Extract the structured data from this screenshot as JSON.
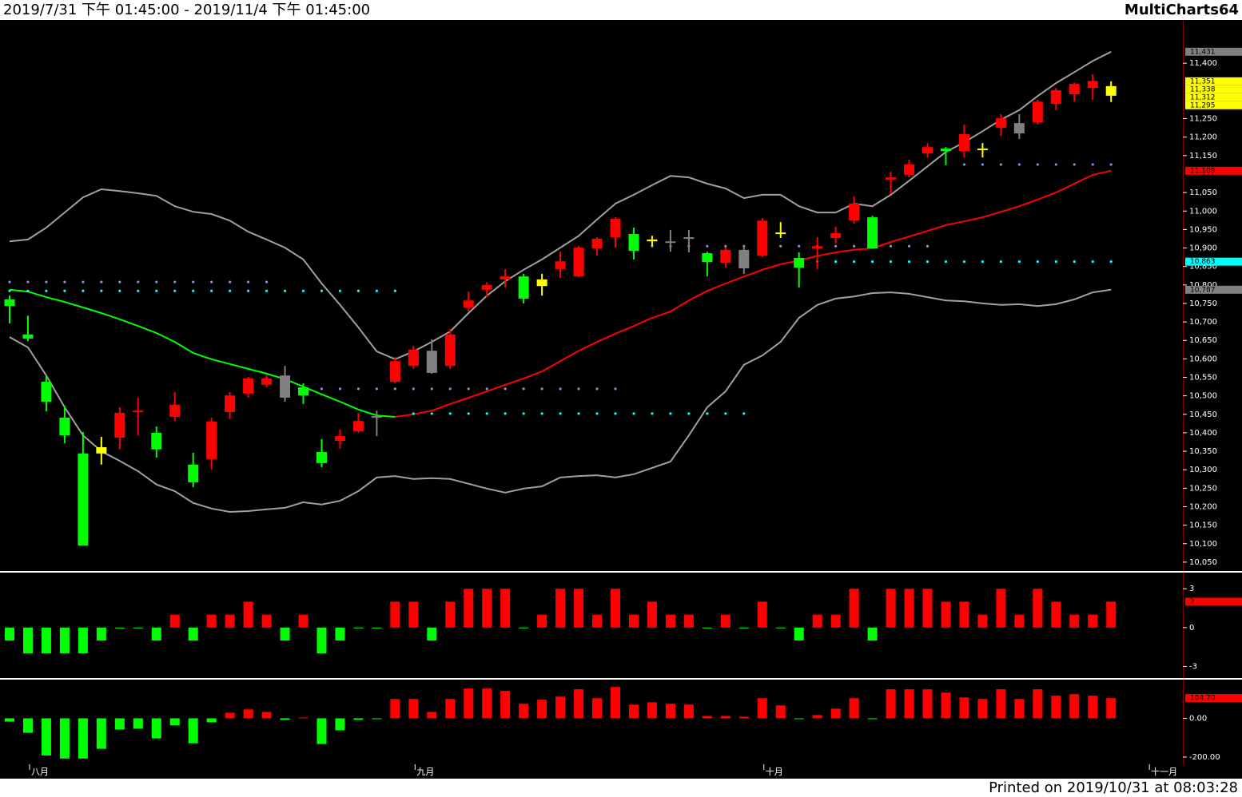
{
  "header": {
    "range": "2019/7/31 下午 01:45:00 - 2019/11/4 下午 01:45:00",
    "brand": "MultiCharts64"
  },
  "footer": {
    "printed": "Printed on 2019/10/31 at 08:03:28"
  },
  "chart_data": [
    {
      "type": "candlestick",
      "categories": [
        null,
        "八月",
        null,
        null,
        null,
        null,
        null,
        null,
        null,
        null,
        null,
        null,
        null,
        null,
        null,
        null,
        null,
        null,
        null,
        null,
        null,
        null,
        "九月",
        null,
        null,
        null,
        null,
        null,
        null,
        null,
        null,
        null,
        null,
        null,
        null,
        null,
        null,
        null,
        null,
        null,
        null,
        "十月",
        null,
        null,
        null,
        null,
        null,
        null,
        null,
        null,
        null,
        null,
        null,
        null,
        null,
        null,
        null,
        null,
        null,
        null,
        null,
        null,
        "十一月"
      ],
      "open": [
        10761,
        10666,
        10538,
        10441,
        10344,
        10361,
        10387,
        10456,
        10400,
        10443,
        10314,
        10329,
        10456,
        10506,
        10530,
        10555,
        10523,
        10348,
        10378,
        10404,
        10445,
        10538,
        10581,
        10622,
        10581,
        10739,
        10787,
        10815,
        10823,
        10797,
        10843,
        10823,
        10899,
        10929,
        10938,
        10918,
        10918,
        10929,
        10886,
        10860,
        10895,
        10879,
        10938,
        10873,
        10899,
        10927,
        10974,
        10983,
        11085,
        11098,
        11156,
        11169,
        11162,
        11165,
        11225,
        11238,
        11240,
        11290,
        11316,
        11333,
        11338,
        null,
        null
      ],
      "high": [
        10771,
        10717,
        10555,
        10473,
        10402,
        10389,
        10469,
        10495,
        10417,
        10510,
        10346,
        10441,
        10510,
        10551,
        10555,
        10581,
        10534,
        10383,
        10409,
        10454,
        10460,
        10605,
        10635,
        10653,
        10681,
        10782,
        10808,
        10843,
        10830,
        10830,
        10890,
        10905,
        10929,
        10983,
        10955,
        10933,
        10949,
        10949,
        10890,
        10901,
        10905,
        10981,
        10970,
        10888,
        10929,
        10957,
        11039,
        10987,
        11106,
        11139,
        11184,
        11173,
        11234,
        11184,
        11262,
        11262,
        11301,
        11333,
        11348,
        11370,
        11351,
        null,
        null
      ],
      "low": [
        10696,
        10648,
        10458,
        10372,
        10095,
        10314,
        10355,
        10393,
        10333,
        10432,
        10253,
        10301,
        10437,
        10495,
        10523,
        10484,
        10478,
        10307,
        10357,
        10400,
        10391,
        10534,
        10573,
        10560,
        10573,
        10728,
        10767,
        10793,
        10750,
        10771,
        10819,
        10821,
        10879,
        10901,
        10869,
        10905,
        10890,
        10888,
        10823,
        10847,
        10830,
        10875,
        10927,
        10793,
        10843,
        10912,
        10966,
        10899,
        11046,
        11091,
        11145,
        11124,
        11145,
        11145,
        11203,
        11195,
        11234,
        11273,
        11296,
        11301,
        11295,
        null,
        null
      ],
      "close": [
        10743,
        10655,
        10484,
        10393,
        10095,
        10344,
        10454,
        10460,
        10355,
        10476,
        10266,
        10430,
        10501,
        10547,
        10547,
        10495,
        10501,
        10318,
        10391,
        10432,
        10441,
        10594,
        10625,
        10562,
        10666,
        10758,
        10800,
        10823,
        10763,
        10815,
        10864,
        10901,
        10925,
        10979,
        10892,
        10923,
        10914,
        10925,
        10862,
        10895,
        10845,
        10974,
        10942,
        10847,
        10905,
        10940,
        11020,
        10899,
        11091,
        11126,
        11173,
        11162,
        11208,
        11169,
        11251,
        11210,
        11296,
        11327,
        11344,
        11352,
        11312,
        null,
        null
      ],
      "colors": [
        "#00ff00",
        "#00ff00",
        "#00ff00",
        "#00ff00",
        "#00ff00",
        "#ffff00",
        "#ff0000",
        "#ff0000",
        "#00ff00",
        "#ff0000",
        "#00ff00",
        "#ff0000",
        "#ff0000",
        "#ff0000",
        "#ff0000",
        "#808080",
        "#00ff00",
        "#00ff00",
        "#ff0000",
        "#ff0000",
        "#808080",
        "#ff0000",
        "#ff0000",
        "#808080",
        "#ff0000",
        "#ff0000",
        "#ff0000",
        "#ff0000",
        "#00ff00",
        "#ffff00",
        "#ff0000",
        "#ff0000",
        "#ff0000",
        "#ff0000",
        "#00ff00",
        "#ffff00",
        "#808080",
        "#808080",
        "#00ff00",
        "#ff0000",
        "#808080",
        "#ff0000",
        "#ffff00",
        "#00ff00",
        "#ff0000",
        "#ff0000",
        "#ff0000",
        "#00ff00",
        "#ff0000",
        "#ff0000",
        "#ff0000",
        "#00ff00",
        "#ff0000",
        "#ffff00",
        "#ff0000",
        "#808080",
        "#ff0000",
        "#ff0000",
        "#ff0000",
        "#ff0000",
        "#ffff00",
        null,
        null
      ],
      "series": [
        {
          "style": "line",
          "color": "#a0a0a0",
          "values": [
            10918,
            10923,
            10955,
            10996,
            11037,
            11059,
            11054,
            11048,
            11041,
            11013,
            10998,
            10992,
            10974,
            10944,
            10923,
            10901,
            10869,
            10804,
            10746,
            10685,
            10620,
            10599,
            10620,
            10646,
            10674,
            10724,
            10771,
            10810,
            10841,
            10869,
            10901,
            10933,
            10977,
            11020,
            11044,
            11070,
            11095,
            11091,
            11074,
            11061,
            11035,
            11044,
            11044,
            11013,
            10996,
            10996,
            11020,
            11013,
            11044,
            11082,
            11121,
            11160,
            11186,
            11216,
            11247,
            11273,
            11311,
            11346,
            11376,
            11406,
            11431,
            null,
            null
          ]
        },
        {
          "style": "line",
          "color": "#a0a0a0",
          "values": [
            10659,
            10631,
            10555,
            10469,
            10393,
            10350,
            10324,
            10296,
            10260,
            10242,
            10210,
            10195,
            10186,
            10188,
            10193,
            10197,
            10212,
            10206,
            10216,
            10242,
            10279,
            10283,
            10275,
            10277,
            10275,
            10262,
            10249,
            10238,
            10249,
            10255,
            10279,
            10283,
            10285,
            10279,
            10288,
            10305,
            10322,
            10393,
            10469,
            10512,
            10584,
            10609,
            10646,
            10711,
            10746,
            10763,
            10769,
            10778,
            10780,
            10776,
            10767,
            10758,
            10756,
            10750,
            10746,
            10748,
            10743,
            10748,
            10761,
            10780,
            10787,
            null,
            null
          ]
        },
        {
          "style": "line",
          "values": [
            10787,
            10782,
            10767,
            10754,
            10739,
            10724,
            10707,
            10689,
            10670,
            10646,
            10616,
            10599,
            10586,
            10573,
            10560,
            10545,
            10525,
            10504,
            10484,
            10463,
            10447,
            10443,
            10450,
            10460,
            10478,
            10495,
            10512,
            10530,
            10547,
            10566,
            10594,
            10622,
            10646,
            10668,
            10689,
            10711,
            10728,
            10758,
            10784,
            10804,
            10823,
            10841,
            10856,
            10866,
            10879,
            10888,
            10895,
            10899,
            10916,
            10931,
            10946,
            10962,
            10972,
            10983,
            10998,
            11013,
            11031,
            11050,
            11074,
            11098,
            11109,
            null,
            null
          ],
          "colors": [
            "#00ff00",
            "#00ff00",
            "#00ff00",
            "#00ff00",
            "#00ff00",
            "#00ff00",
            "#00ff00",
            "#00ff00",
            "#00ff00",
            "#00ff00",
            "#00ff00",
            "#00ff00",
            "#00ff00",
            "#00ff00",
            "#00ff00",
            "#00ff00",
            "#00ff00",
            "#00ff00",
            "#00ff00",
            "#00ff00",
            "#00ff00",
            "#00ff00",
            "#ff0000",
            "#ff0000",
            "#ff0000",
            "#ff0000",
            "#ff0000",
            "#ff0000",
            "#ff0000",
            "#ff0000",
            "#ff0000",
            "#ff0000",
            "#ff0000",
            "#ff0000",
            "#ff0000",
            "#ff0000",
            "#ff0000",
            "#ff0000",
            "#ff0000",
            "#ff0000",
            "#ff0000",
            "#ff0000",
            "#ff0000",
            "#ff0000",
            "#ff0000",
            "#ff0000",
            "#ff0000",
            "#ff0000",
            "#ff0000",
            "#ff0000",
            "#ff0000",
            "#ff0000",
            "#ff0000",
            "#ff0000",
            "#ff0000",
            "#ff0000",
            "#ff0000",
            "#ff0000",
            "#ff0000",
            "#ff0000",
            "#ff0000",
            null,
            null
          ]
        },
        {
          "style": "dots",
          "color": "#8c8cd8",
          "values": [
            10808,
            10808,
            10808,
            10808,
            10808,
            10808,
            10808,
            10808,
            10808,
            10808,
            10808,
            10808,
            10808,
            10808,
            10808,
            null,
            null,
            10519,
            10519,
            10519,
            10519,
            10519,
            10519,
            10519,
            10519,
            10519,
            10519,
            10519,
            10519,
            10519,
            10519,
            10519,
            10519,
            10519,
            null,
            10905,
            10905,
            10905,
            10905,
            10905,
            10905,
            10905,
            10905,
            10905,
            10905,
            10905,
            10905,
            10905,
            10905,
            10905,
            10905,
            null,
            11126,
            11126,
            11126,
            11126,
            11126,
            11126,
            11126,
            11126,
            11126,
            null,
            null
          ]
        },
        {
          "style": "dots",
          "color": "#00ffff",
          "values": [
            10784,
            10784,
            10784,
            10784,
            10784,
            10784,
            10784,
            10784,
            10784,
            10784,
            10784,
            10784,
            10784,
            10784,
            10784,
            10784,
            10784,
            10784,
            10784,
            10784,
            10784,
            10784,
            10452,
            10452,
            10452,
            10452,
            10452,
            10452,
            10452,
            10452,
            10452,
            10452,
            10452,
            10452,
            10452,
            10452,
            10452,
            10452,
            10452,
            10452,
            10452,
            null,
            null,
            10863,
            10863,
            10863,
            10863,
            10863,
            10863,
            10863,
            10863,
            10863,
            10863,
            10863,
            10863,
            10863,
            10863,
            10863,
            10863,
            10863,
            10863,
            null,
            null
          ]
        }
      ],
      "ylim": [
        10026,
        11517
      ],
      "yticks": [
        {
          "value": 11400,
          "label": "11,400"
        },
        {
          "value": 11250,
          "label": "11,250"
        },
        {
          "value": 11200,
          "label": "11,200"
        },
        {
          "value": 11150,
          "label": "11,150"
        },
        {
          "value": 11050,
          "label": "11,050"
        },
        {
          "value": 11000,
          "label": "11,000"
        },
        {
          "value": 10950,
          "label": "10,950"
        },
        {
          "value": 10900,
          "label": "10,900"
        },
        {
          "value": 10850,
          "label": "10,850"
        },
        {
          "value": 10800,
          "label": "10,800"
        },
        {
          "value": 10750,
          "label": "10,750"
        },
        {
          "value": 10700,
          "label": "10,700"
        },
        {
          "value": 10650,
          "label": "10,650"
        },
        {
          "value": 10600,
          "label": "10,600"
        },
        {
          "value": 10550,
          "label": "10,550"
        },
        {
          "value": 10500,
          "label": "10,500"
        },
        {
          "value": 10450,
          "label": "10,450"
        },
        {
          "value": 10400,
          "label": "10,400"
        },
        {
          "value": 10350,
          "label": "10,350"
        },
        {
          "value": 10300,
          "label": "10,300"
        },
        {
          "value": 10250,
          "label": "10,250"
        },
        {
          "value": 10200,
          "label": "10,200"
        },
        {
          "value": 10150,
          "label": "10,150"
        },
        {
          "value": 10100,
          "label": "10,100"
        },
        {
          "value": 10050,
          "label": "10,050"
        }
      ],
      "price_tags": [
        {
          "value": 11431,
          "label": "11,431",
          "color": "#808080"
        },
        {
          "value": 11351,
          "label": "11,351",
          "color": "#ffff00"
        },
        {
          "value": 11338,
          "label": "11,338",
          "color": "#ffff00"
        },
        {
          "value": 11312,
          "label": "11,312",
          "color": "#ffff00"
        },
        {
          "value": 11295,
          "label": "11,295",
          "color": "#ffff00"
        },
        {
          "value": 11109,
          "label": "11,109",
          "color": "#ff0000"
        },
        {
          "value": 10863,
          "label": "10,863",
          "color": "#00ffff"
        },
        {
          "value": 10787,
          "label": "10,787",
          "color": "#808080"
        }
      ]
    },
    {
      "type": "bar",
      "values": [
        -1,
        -2,
        -2,
        -2,
        -2,
        -1,
        0,
        0,
        -1,
        1,
        -1,
        1,
        1,
        2,
        1,
        -1,
        1,
        -2,
        -1,
        0,
        0,
        2,
        2,
        -1,
        2,
        3,
        3,
        3,
        0,
        1,
        3,
        3,
        1,
        3,
        1,
        2,
        1,
        1,
        0,
        1,
        0,
        2,
        0,
        -1,
        1,
        1,
        3,
        -1,
        3,
        3,
        3,
        2,
        2,
        1,
        3,
        1,
        3,
        2,
        1,
        1,
        2,
        null,
        null
      ],
      "up_color": "#ff0000",
      "down_color": "#00ff00",
      "ylim": [
        -3.9,
        4.25
      ],
      "yticks": [
        3,
        0,
        -3
      ],
      "price_tags": [
        {
          "value": 2,
          "label": "2",
          "color": "#ff0000"
        }
      ]
    },
    {
      "type": "bar",
      "values": [
        -17,
        -75,
        -192,
        -208,
        -208,
        -158,
        -58,
        -54,
        -104,
        -37,
        -129,
        -21,
        29,
        46,
        33,
        -8,
        4,
        -133,
        -62,
        -8,
        -2,
        100,
        100,
        33,
        100,
        154,
        154,
        142,
        75,
        96,
        112,
        150,
        104,
        162,
        71,
        83,
        75,
        71,
        12,
        12,
        8,
        104,
        67,
        0,
        17,
        50,
        104,
        -4,
        150,
        150,
        150,
        133,
        108,
        100,
        150,
        100,
        150,
        117,
        125,
        117,
        104.7,
        null,
        null
      ],
      "up_color": "#ff0000",
      "down_color": "#00ff00",
      "ylim": [
        -237.5,
        200
      ],
      "yticks": [
        {
          "value": 0,
          "label": "0.00"
        },
        {
          "value": -200,
          "label": "-200.00"
        }
      ],
      "price_tags": [
        {
          "value": 104.7,
          "label": "104.70",
          "color": "#ff0000"
        }
      ]
    }
  ]
}
